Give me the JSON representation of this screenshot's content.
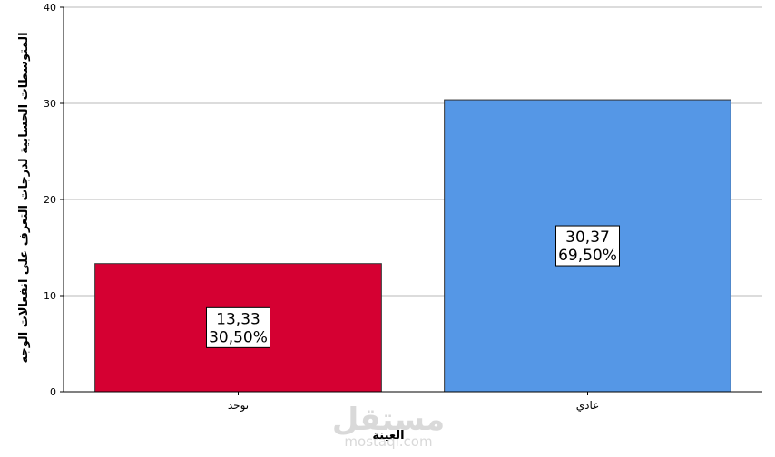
{
  "chart_data": {
    "type": "bar",
    "title": "",
    "xlabel": "العينة",
    "ylabel": "المتوسطات الحسابية لدرجات التعرف على انفعالات الوجه",
    "ylim": [
      0,
      40
    ],
    "yticks": [
      0,
      10,
      20,
      30,
      40
    ],
    "grid": true,
    "categories": [
      "توحد",
      "عادي"
    ],
    "values": [
      13.33,
      30.37
    ],
    "data_labels": [
      {
        "value": "13,33",
        "percent": "30,50%"
      },
      {
        "value": "30,37",
        "percent": "69,50%"
      }
    ],
    "colors": [
      "#d50032",
      "#5597e6"
    ]
  },
  "watermark": {
    "text": "مستقل",
    "sub": "mostaql.com"
  }
}
